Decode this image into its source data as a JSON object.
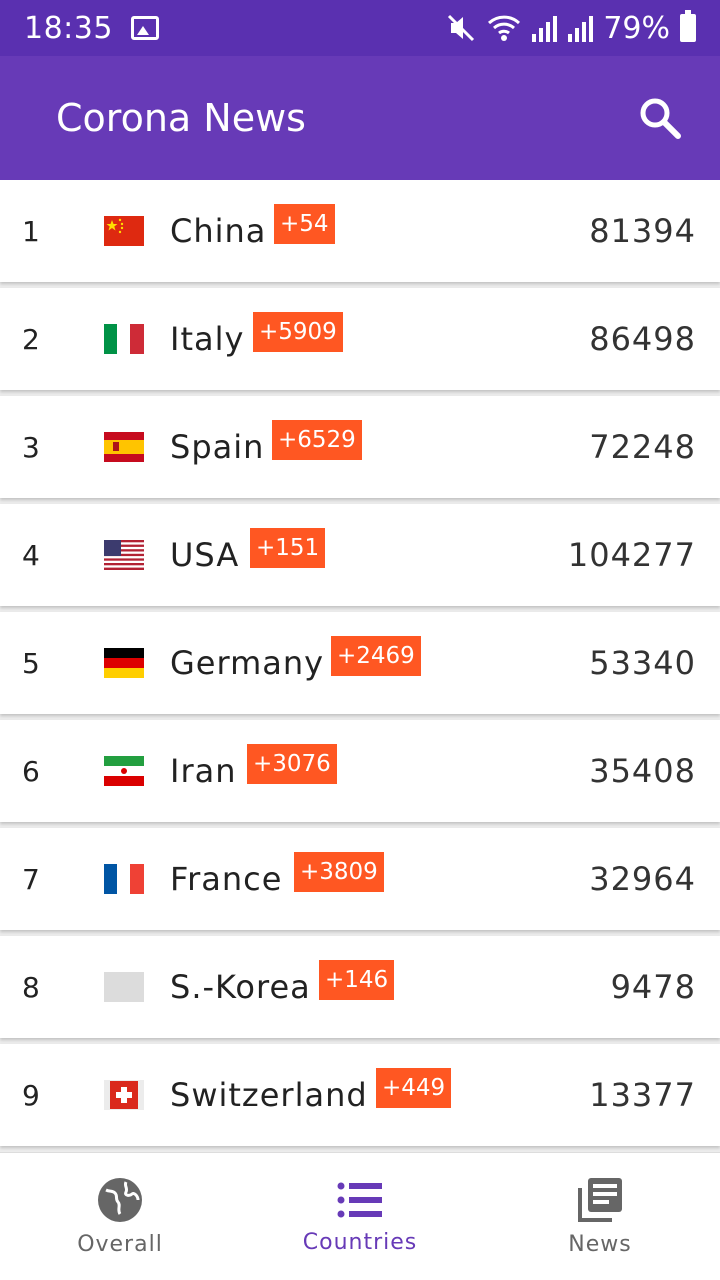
{
  "status": {
    "time": "18:35",
    "battery": "79%"
  },
  "app": {
    "title": "Corona News",
    "accent": "#673ab7",
    "status_color": "#5a30b0",
    "badge_color": "#ff5722"
  },
  "countries": [
    {
      "rank": "1",
      "name": "China",
      "delta": "+54",
      "total": "81394",
      "flag": "china"
    },
    {
      "rank": "2",
      "name": "Italy",
      "delta": "+5909",
      "total": "86498",
      "flag": "italy"
    },
    {
      "rank": "3",
      "name": "Spain",
      "delta": "+6529",
      "total": "72248",
      "flag": "spain"
    },
    {
      "rank": "4",
      "name": "USA",
      "delta": "+151",
      "total": "104277",
      "flag": "usa"
    },
    {
      "rank": "5",
      "name": "Germany",
      "delta": "+2469",
      "total": "53340",
      "flag": "germany"
    },
    {
      "rank": "6",
      "name": "Iran",
      "delta": "+3076",
      "total": "35408",
      "flag": "iran"
    },
    {
      "rank": "7",
      "name": "France",
      "delta": "+3809",
      "total": "32964",
      "flag": "france"
    },
    {
      "rank": "8",
      "name": "S.-Korea",
      "delta": "+146",
      "total": "9478",
      "flag": "placeholder"
    },
    {
      "rank": "9",
      "name": "Switzerland",
      "delta": "+449",
      "total": "13377",
      "flag": "switzerland"
    }
  ],
  "nav": [
    {
      "label": "Overall",
      "icon": "globe-icon"
    },
    {
      "label": "Countries",
      "icon": "list-icon"
    },
    {
      "label": "News",
      "icon": "news-icon"
    }
  ]
}
